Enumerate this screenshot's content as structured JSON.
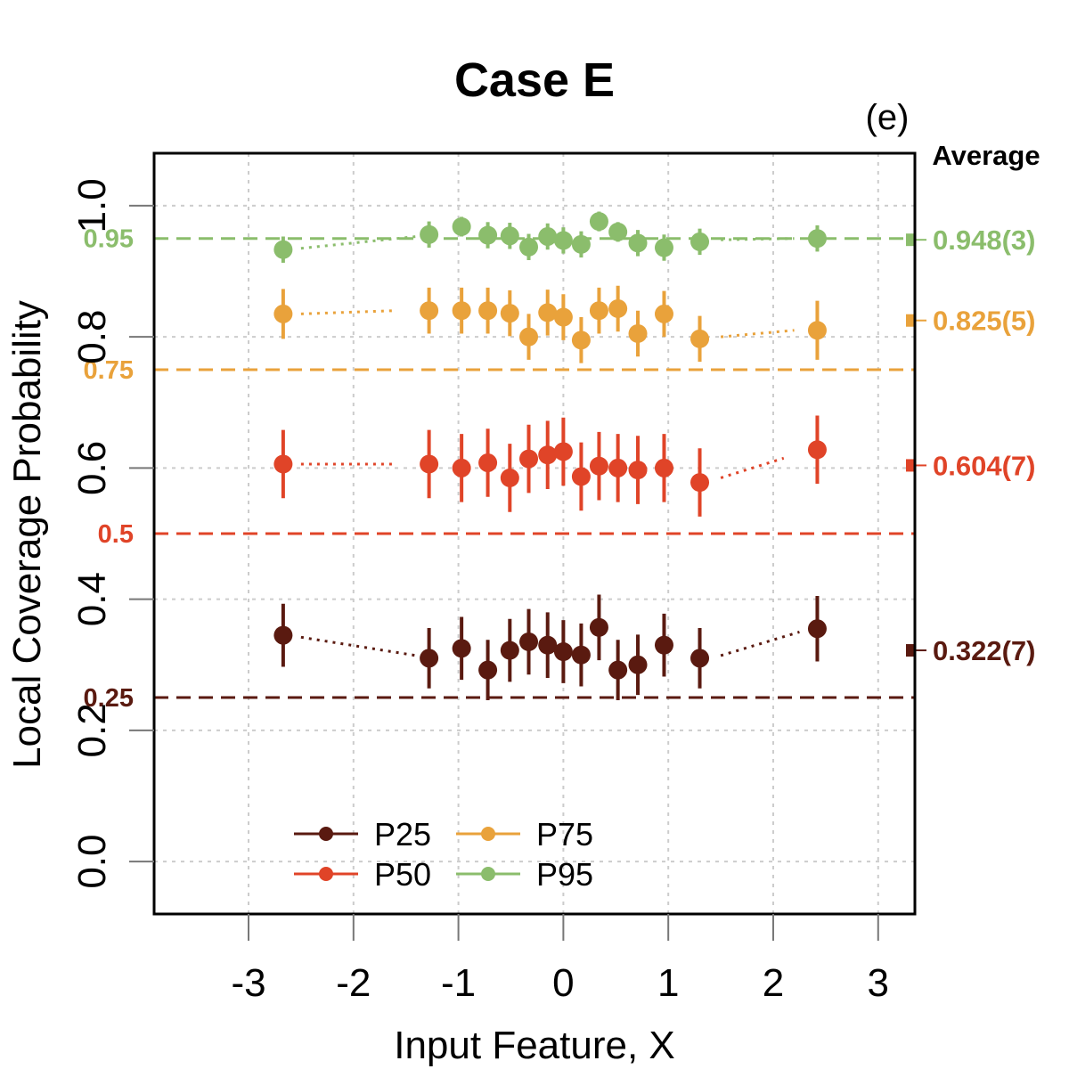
{
  "chart_data": {
    "type": "scatter",
    "title": "Case E",
    "panel_label": "(e)",
    "xlabel": "Input Feature, X",
    "ylabel": "Local Coverage Probability",
    "xlim": [
      -3.9,
      3.35
    ],
    "ylim": [
      -0.08,
      1.08
    ],
    "x_ticks": [
      -3,
      -2,
      -1,
      0,
      1,
      2,
      3
    ],
    "x_tick_labels": [
      "-3",
      "-2",
      "-1",
      "0",
      "1",
      "2",
      "3"
    ],
    "y_ticks": [
      0.0,
      0.2,
      0.4,
      0.6,
      0.8,
      1.0
    ],
    "y_tick_labels": [
      "0.0",
      "0.2",
      "0.4",
      "0.6",
      "0.8",
      "1.0"
    ],
    "grid": true,
    "average_header": "Average",
    "x": [
      -2.67,
      -1.28,
      -0.97,
      -0.72,
      -0.51,
      -0.33,
      -0.15,
      0.0,
      0.17,
      0.34,
      0.52,
      0.71,
      0.96,
      1.3,
      2.42
    ],
    "series": [
      {
        "name": "P25",
        "color": "#5a1a10",
        "target": 0.25,
        "target_label": "0.25",
        "average_value": 0.322,
        "average_label": "0.322(7)",
        "values": [
          0.345,
          0.31,
          0.325,
          0.292,
          0.322,
          0.335,
          0.33,
          0.32,
          0.315,
          0.357,
          0.292,
          0.3,
          0.33,
          0.31,
          0.355
        ],
        "errors": [
          0.048,
          0.046,
          0.048,
          0.046,
          0.048,
          0.05,
          0.05,
          0.048,
          0.048,
          0.05,
          0.046,
          0.046,
          0.048,
          0.046,
          0.05
        ],
        "trend": [
          [
            -2.5,
            0.342
          ],
          [
            -1.4,
            0.314
          ],
          [
            1.5,
            0.314
          ],
          [
            2.25,
            0.35
          ]
        ]
      },
      {
        "name": "P50",
        "color": "#e04428",
        "target": 0.5,
        "target_label": "0.5",
        "average_value": 0.604,
        "average_label": "0.604(7)",
        "values": [
          0.606,
          0.606,
          0.6,
          0.608,
          0.585,
          0.614,
          0.62,
          0.625,
          0.587,
          0.603,
          0.6,
          0.597,
          0.6,
          0.578,
          0.628
        ],
        "errors": [
          0.052,
          0.052,
          0.052,
          0.052,
          0.052,
          0.052,
          0.052,
          0.052,
          0.052,
          0.052,
          0.052,
          0.052,
          0.052,
          0.052,
          0.052
        ],
        "trend": [
          [
            -2.5,
            0.606
          ],
          [
            -1.6,
            0.606
          ],
          [
            1.5,
            0.585
          ],
          [
            2.1,
            0.615
          ]
        ]
      },
      {
        "name": "P75",
        "color": "#e9a23b",
        "target": 0.75,
        "target_label": "0.75",
        "average_value": 0.825,
        "average_label": "0.825(5)",
        "values": [
          0.835,
          0.84,
          0.84,
          0.84,
          0.836,
          0.8,
          0.837,
          0.83,
          0.795,
          0.84,
          0.843,
          0.805,
          0.835,
          0.797,
          0.81
        ],
        "errors": [
          0.038,
          0.035,
          0.035,
          0.035,
          0.035,
          0.035,
          0.035,
          0.035,
          0.035,
          0.035,
          0.035,
          0.035,
          0.035,
          0.035,
          0.045
        ],
        "trend": [
          [
            -2.5,
            0.835
          ],
          [
            -1.6,
            0.84
          ],
          [
            1.5,
            0.8
          ],
          [
            2.2,
            0.81
          ]
        ]
      },
      {
        "name": "P95",
        "color": "#8bbd6c",
        "target": 0.95,
        "target_label": "0.95",
        "average_value": 0.948,
        "average_label": "0.948(3)",
        "values": [
          0.933,
          0.956,
          0.968,
          0.955,
          0.954,
          0.937,
          0.953,
          0.947,
          0.941,
          0.976,
          0.96,
          0.943,
          0.936,
          0.945,
          0.95
        ],
        "errors": [
          0.02,
          0.02,
          0.015,
          0.02,
          0.02,
          0.02,
          0.02,
          0.02,
          0.02,
          0.015,
          0.015,
          0.02,
          0.02,
          0.02,
          0.02
        ],
        "trend": [
          [
            -2.5,
            0.935
          ],
          [
            -1.4,
            0.953
          ],
          [
            1.5,
            0.948
          ],
          [
            2.2,
            0.95
          ]
        ]
      }
    ],
    "legend": {
      "position": "bottom-left",
      "columns": 2
    }
  }
}
